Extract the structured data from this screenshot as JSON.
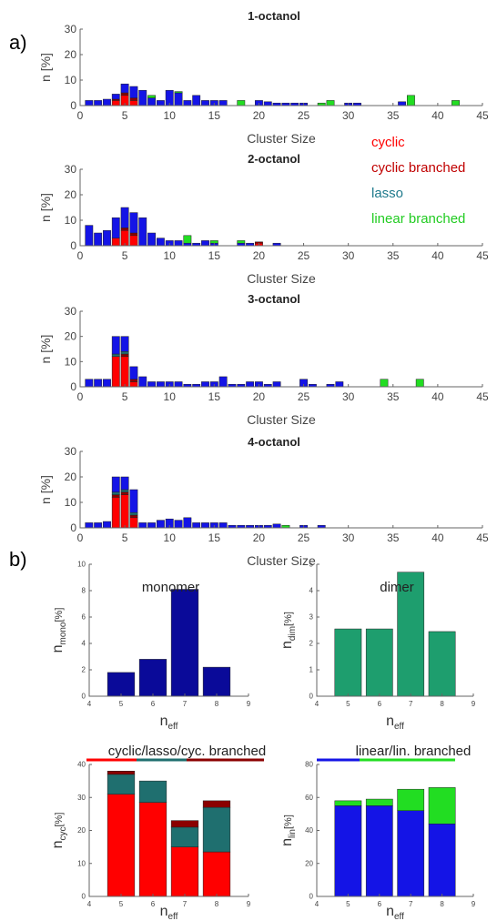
{
  "panel_labels": {
    "a": "a)",
    "b": "b)"
  },
  "legend": [
    {
      "label": "cyclic",
      "color": "#ff0000"
    },
    {
      "label": "cyclic branched",
      "color": "#c00000"
    },
    {
      "label": "lasso",
      "color": "#1f7a8c"
    },
    {
      "label": "linear branched",
      "color": "#22cc22"
    }
  ],
  "colors": {
    "cyclic": "#ff0000",
    "cyclic_branched": "#8b0000",
    "lasso": "#1f6f6f",
    "linear": "#1414e6",
    "linear_branched": "#22dd22",
    "monomer": "#0a0a99",
    "dimer": "#1e9e6e"
  },
  "chart_data": [
    {
      "type": "bar",
      "stacked": true,
      "title": "1-octanol",
      "xlabel": "Cluster Size",
      "ylabel": "n [%]",
      "xlim": [
        0,
        45
      ],
      "ylim": [
        0,
        30
      ],
      "xticks": [
        "0",
        "5",
        "10",
        "15",
        "20",
        "25",
        "30",
        "35",
        "40",
        "45"
      ],
      "yticks": [
        "0",
        "10",
        "20",
        "30"
      ],
      "x": [
        1,
        2,
        3,
        4,
        5,
        6,
        7,
        8,
        9,
        10,
        11,
        12,
        13,
        14,
        15,
        16,
        18,
        20,
        21,
        22,
        23,
        24,
        25,
        27,
        28,
        30,
        31,
        36,
        37,
        42
      ],
      "series": [
        {
          "key": "cyclic",
          "values": [
            0,
            0,
            0,
            2,
            4,
            2,
            0,
            0,
            0,
            0,
            0,
            0,
            0,
            0,
            0,
            0,
            0,
            0,
            0,
            0,
            0,
            0,
            0,
            0,
            0,
            0,
            0,
            0,
            0,
            0
          ]
        },
        {
          "key": "cyclic_branched",
          "values": [
            0,
            0,
            0,
            0.5,
            1,
            1,
            0,
            0,
            0,
            0,
            0,
            0,
            0,
            0,
            0,
            0,
            0,
            0,
            0,
            0,
            0,
            0,
            0,
            0,
            0,
            0,
            0,
            0,
            0,
            0
          ]
        },
        {
          "key": "lasso",
          "values": [
            0,
            0,
            0,
            0,
            0,
            0,
            0,
            0,
            0,
            0,
            0,
            0,
            0,
            0,
            0,
            0,
            0,
            0,
            0,
            0,
            0,
            0,
            0,
            0,
            0,
            0,
            0,
            0,
            0,
            0
          ]
        },
        {
          "key": "linear",
          "values": [
            2,
            2,
            2.5,
            2,
            3.5,
            4.5,
            6,
            3,
            2,
            6,
            5,
            2,
            4,
            2,
            2,
            2,
            0,
            2,
            1.5,
            1,
            1,
            1,
            1,
            0,
            0,
            1,
            1,
            1.5,
            0,
            0
          ]
        },
        {
          "key": "linear_branched",
          "values": [
            0,
            0,
            0,
            0,
            0,
            0,
            0,
            1,
            0,
            0,
            0.5,
            0,
            0,
            0,
            0,
            0,
            2,
            0,
            0,
            0,
            0,
            0,
            0,
            1,
            2,
            0,
            0,
            0,
            4,
            2
          ]
        }
      ]
    },
    {
      "type": "bar",
      "stacked": true,
      "title": "2-octanol",
      "xlabel": "Cluster Size",
      "ylabel": "n [%]",
      "xlim": [
        0,
        45
      ],
      "ylim": [
        0,
        30
      ],
      "xticks": [
        "0",
        "5",
        "10",
        "15",
        "20",
        "25",
        "30",
        "35",
        "40",
        "45"
      ],
      "yticks": [
        "0",
        "10",
        "20",
        "30"
      ],
      "x": [
        1,
        2,
        3,
        4,
        5,
        6,
        7,
        8,
        9,
        10,
        11,
        12,
        13,
        14,
        15,
        18,
        19,
        20,
        22
      ],
      "series": [
        {
          "key": "cyclic",
          "values": [
            0,
            0,
            0,
            3,
            6,
            4,
            0,
            0,
            0,
            0,
            0,
            0,
            0,
            0,
            0,
            0,
            0,
            1,
            0
          ]
        },
        {
          "key": "cyclic_branched",
          "values": [
            0,
            0,
            0,
            0,
            1,
            1,
            0,
            0,
            0,
            0,
            0,
            0,
            0,
            0,
            0,
            0,
            0,
            0.5,
            0
          ]
        },
        {
          "key": "lasso",
          "values": [
            0,
            0,
            0,
            0,
            0,
            0,
            0,
            0,
            0,
            0,
            0,
            0,
            0,
            0,
            0,
            0,
            0,
            0,
            0
          ]
        },
        {
          "key": "linear",
          "values": [
            8,
            5,
            6,
            8,
            8,
            8,
            11,
            5,
            3,
            2,
            2,
            1,
            1,
            2,
            1,
            1,
            1,
            0,
            1
          ]
        },
        {
          "key": "linear_branched",
          "values": [
            0,
            0,
            0,
            0,
            0,
            0,
            0,
            0,
            0,
            0,
            0,
            3,
            0,
            0,
            1,
            1,
            0,
            0,
            0
          ]
        }
      ]
    },
    {
      "type": "bar",
      "stacked": true,
      "title": "3-octanol",
      "xlabel": "Cluster Size",
      "ylabel": "n [%]",
      "xlim": [
        0,
        45
      ],
      "ylim": [
        0,
        30
      ],
      "xticks": [
        "0",
        "5",
        "10",
        "15",
        "20",
        "25",
        "30",
        "35",
        "40",
        "45"
      ],
      "yticks": [
        "0",
        "10",
        "20",
        "30"
      ],
      "x": [
        1,
        2,
        3,
        4,
        5,
        6,
        7,
        8,
        9,
        10,
        11,
        12,
        13,
        14,
        15,
        16,
        17,
        18,
        19,
        20,
        21,
        22,
        25,
        26,
        28,
        29,
        34,
        38
      ],
      "series": [
        {
          "key": "cyclic",
          "values": [
            0,
            0,
            0,
            12,
            12,
            2,
            0,
            0,
            0,
            0,
            0,
            0,
            0,
            0,
            0,
            0,
            0,
            0,
            0,
            0,
            0,
            0,
            0,
            0,
            0,
            0,
            0,
            0
          ]
        },
        {
          "key": "cyclic_branched",
          "values": [
            0,
            0,
            0,
            0,
            1,
            1,
            0,
            0,
            0,
            0,
            0,
            0,
            0,
            0,
            0,
            0,
            0,
            0,
            0,
            0,
            0,
            0,
            0,
            0,
            0,
            0,
            0,
            0
          ]
        },
        {
          "key": "lasso",
          "values": [
            0,
            0,
            0,
            1,
            1,
            0,
            0,
            0,
            0,
            0,
            0,
            0,
            0,
            0,
            0,
            0,
            0,
            0,
            0,
            0,
            0,
            0,
            0,
            0,
            0,
            0,
            0,
            0
          ]
        },
        {
          "key": "linear",
          "values": [
            3,
            3,
            3,
            7,
            6,
            5,
            4,
            2,
            2,
            2,
            2,
            1,
            1,
            2,
            2,
            4,
            1,
            1,
            2,
            2,
            1,
            2,
            3,
            1,
            1,
            2,
            0,
            0
          ]
        },
        {
          "key": "linear_branched",
          "values": [
            0,
            0,
            0,
            0,
            0,
            0,
            0,
            0,
            0,
            0,
            0,
            0,
            0,
            0,
            0,
            0,
            0,
            0,
            0,
            0,
            0,
            0,
            0,
            0,
            0,
            0,
            3,
            3
          ]
        }
      ]
    },
    {
      "type": "bar",
      "stacked": true,
      "title": "4-octanol",
      "xlabel": "Cluster Size",
      "ylabel": "n [%]",
      "xlim": [
        0,
        45
      ],
      "ylim": [
        0,
        30
      ],
      "xticks": [
        "0",
        "5",
        "10",
        "15",
        "20",
        "25",
        "30",
        "35",
        "40",
        "45"
      ],
      "yticks": [
        "0",
        "10",
        "20",
        "30"
      ],
      "x": [
        1,
        2,
        3,
        4,
        5,
        6,
        7,
        8,
        9,
        10,
        11,
        12,
        13,
        14,
        15,
        16,
        17,
        18,
        19,
        20,
        21,
        22,
        23,
        25,
        27
      ],
      "series": [
        {
          "key": "cyclic",
          "values": [
            0,
            0,
            0,
            12,
            13,
            4,
            0,
            0,
            0,
            0,
            0,
            0,
            0,
            0,
            0,
            0,
            0,
            0,
            0,
            0,
            0,
            0,
            0,
            0,
            0
          ]
        },
        {
          "key": "cyclic_branched",
          "values": [
            0,
            0,
            0,
            1,
            1,
            1,
            0,
            0,
            0,
            0,
            0,
            0,
            0,
            0,
            0,
            0,
            0,
            0,
            0,
            0,
            0,
            0,
            0,
            0,
            0
          ]
        },
        {
          "key": "lasso",
          "values": [
            0,
            0,
            0,
            1,
            1,
            1,
            0,
            0,
            0,
            0,
            0,
            0,
            0,
            0,
            0,
            0,
            0,
            0,
            0,
            0,
            0,
            0,
            0,
            0,
            0
          ]
        },
        {
          "key": "linear",
          "values": [
            2,
            2,
            2.5,
            6,
            5,
            9,
            2,
            2,
            3,
            3.5,
            3,
            4,
            2,
            2,
            2,
            2,
            1,
            1,
            1,
            1,
            1,
            1.5,
            0,
            1,
            1
          ]
        },
        {
          "key": "linear_branched",
          "values": [
            0,
            0,
            0,
            0,
            0,
            0,
            0,
            0,
            0,
            0,
            0,
            0,
            0,
            0,
            0,
            0,
            0,
            0,
            0,
            0,
            0,
            0,
            1,
            0,
            0
          ]
        }
      ]
    },
    {
      "type": "bar",
      "title": "monomer",
      "ylabel_main": "n",
      "ylabel_sub": "mono",
      "ylabel_unit": "[%]",
      "xlabel_main": "n",
      "xlabel_sub": "eff",
      "xlim": [
        4,
        9
      ],
      "ylim": [
        0,
        10
      ],
      "xticks": [
        "4",
        "5",
        "6",
        "7",
        "8",
        "9"
      ],
      "yticks": [
        "0",
        "2",
        "4",
        "6",
        "8",
        "10"
      ],
      "x": [
        5,
        6,
        7,
        8
      ],
      "series": [
        {
          "key": "monomer",
          "values": [
            1.8,
            2.8,
            8.1,
            2.2
          ]
        }
      ]
    },
    {
      "type": "bar",
      "title": "dimer",
      "ylabel_main": "n",
      "ylabel_sub": "dim",
      "ylabel_unit": "[%]",
      "xlabel_main": "n",
      "xlabel_sub": "eff",
      "xlim": [
        4,
        9
      ],
      "ylim": [
        0,
        5
      ],
      "xticks": [
        "4",
        "5",
        "6",
        "7",
        "8",
        "9"
      ],
      "yticks": [
        "0",
        "1",
        "2",
        "3",
        "4",
        "5"
      ],
      "x": [
        5,
        6,
        7,
        8
      ],
      "series": [
        {
          "key": "dimer",
          "values": [
            2.55,
            2.55,
            4.7,
            2.45
          ]
        }
      ]
    },
    {
      "type": "bar",
      "stacked": true,
      "title": "cyclic/lasso/cyc. branched",
      "ylabel_main": "n",
      "ylabel_sub": "cyc",
      "ylabel_unit": "[%]",
      "xlabel_main": "n",
      "xlabel_sub": "eff",
      "xlim": [
        4,
        9
      ],
      "ylim": [
        0,
        40
      ],
      "xticks": [
        "4",
        "5",
        "6",
        "7",
        "8",
        "9"
      ],
      "yticks": [
        "0",
        "10",
        "20",
        "30",
        "40"
      ],
      "x": [
        5,
        6,
        7,
        8
      ],
      "series": [
        {
          "key": "cyclic",
          "values": [
            31,
            28.5,
            15,
            13.5
          ]
        },
        {
          "key": "lasso",
          "values": [
            6,
            6.5,
            6,
            13.5
          ]
        },
        {
          "key": "cyclic_branched",
          "values": [
            1,
            0,
            2,
            2
          ]
        }
      ]
    },
    {
      "type": "bar",
      "stacked": true,
      "title": "linear/lin. branched",
      "ylabel_main": "n",
      "ylabel_sub": "lin",
      "ylabel_unit": "[%]",
      "xlabel_main": "n",
      "xlabel_sub": "eff",
      "xlim": [
        4,
        9
      ],
      "ylim": [
        0,
        80
      ],
      "xticks": [
        "4",
        "5",
        "6",
        "7",
        "8",
        "9"
      ],
      "yticks": [
        "0",
        "20",
        "40",
        "60",
        "80"
      ],
      "x": [
        5,
        6,
        7,
        8
      ],
      "series": [
        {
          "key": "linear",
          "values": [
            55,
            55,
            52,
            44
          ]
        },
        {
          "key": "linear_branched",
          "values": [
            3,
            4,
            13,
            22
          ]
        }
      ]
    }
  ]
}
